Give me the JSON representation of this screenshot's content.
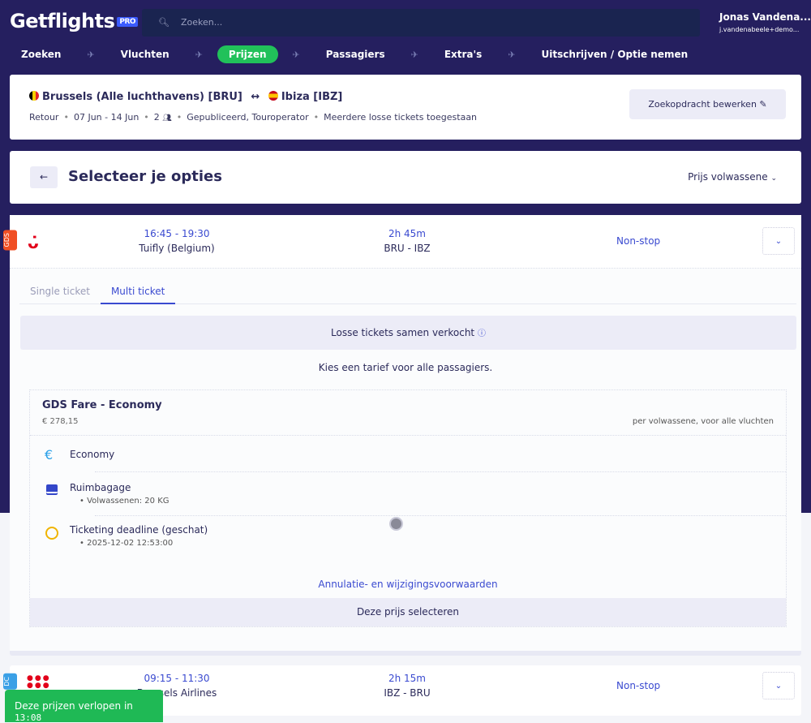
{
  "header": {
    "logo": "Getflights",
    "logo_badge": "PRO",
    "search_placeholder": "Zoeken...",
    "user_name": "Jonas Vandena...",
    "user_email": "j.vandenabeele+demo..."
  },
  "steps": [
    {
      "label": "Zoeken"
    },
    {
      "label": "Vluchten"
    },
    {
      "label": "Prijzen",
      "active": true
    },
    {
      "label": "Passagiers"
    },
    {
      "label": "Extra's"
    },
    {
      "label": "Uitschrijven / Optie nemen"
    }
  ],
  "search_summary": {
    "origin": "Brussels (Alle luchthavens) [BRU]",
    "arrow": "↔",
    "destination": "Ibiza [IBZ]",
    "trip_type": "Retour",
    "dates": "07 Jun - 14 Jun",
    "passengers": "2",
    "fare_types": "Gepubliceerd, Touroperator",
    "multi": "Meerdere losse tickets toegestaan",
    "edit_label": "Zoekopdracht bewerken"
  },
  "options": {
    "title": "Selecteer je opties",
    "price_mode": "Prijs volwassene"
  },
  "flights": [
    {
      "source": "GDS",
      "source_color": "#f04e23",
      "times": "16:45 - 19:30",
      "airline": "Tuifly (Belgium)",
      "duration": "2h 45m",
      "route": "BRU - IBZ",
      "stops": "Non-stop"
    },
    {
      "source": "DC",
      "source_color": "#3ba0e6",
      "times": "09:15 - 11:30",
      "airline": "Brussels Airlines",
      "duration": "2h 15m",
      "route": "IBZ - BRU",
      "stops": "Non-stop"
    }
  ],
  "detail": {
    "tabs": [
      "Single ticket",
      "Multi ticket"
    ],
    "active_tab": "Multi ticket",
    "losse": "Losse tickets samen verkocht",
    "kies": "Kies een tarief voor alle passagiers.",
    "fare": {
      "title": "GDS Fare - Economy",
      "price": "€ 278,15",
      "per": "per volwassene, voor alle vluchten",
      "items": [
        {
          "label": "Economy"
        },
        {
          "label": "Ruimbagage",
          "detail": "Volwassenen: 20 KG"
        },
        {
          "label": "Ticketing deadline (geschat)",
          "detail": "2025-12-02 12:53:00"
        }
      ],
      "conditions": "Annulatie- en wijzigingsvoorwaarden",
      "select": "Deze prijs selecteren"
    }
  },
  "toast": {
    "text": "Deze prijzen verlopen in",
    "time": "13:08"
  }
}
